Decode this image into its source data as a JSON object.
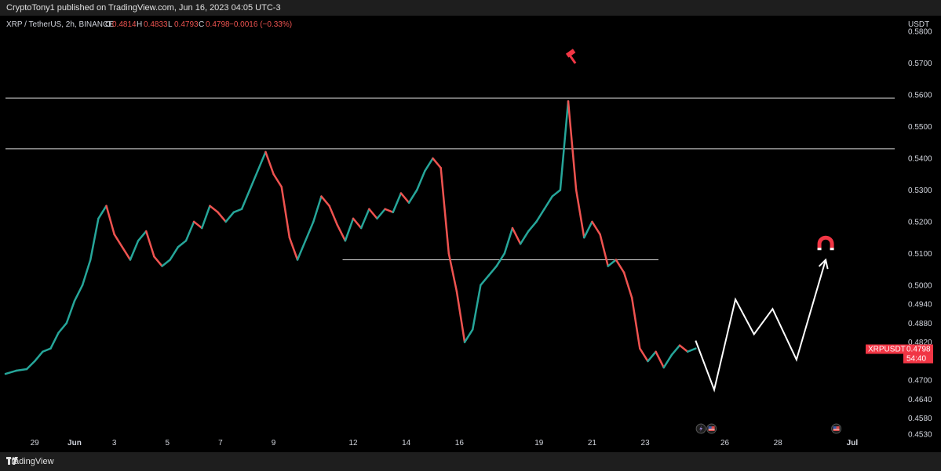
{
  "published": "CryptoTony1 published on TradingView.com, Jun 16, 2023 04:05 UTC-3",
  "footer_brand": "TradingView",
  "chart_data": {
    "type": "line",
    "legend": {
      "symbol": "XRP / TetherUS, 2h, BINANCE",
      "O": "0.4814",
      "H": "0.4833",
      "L": "0.4793",
      "C": "0.4798",
      "change": "−0.0016 (−0.33%)",
      "o_label": "O",
      "h_label": "H",
      "l_label": "L",
      "c_label": "C"
    },
    "currency": "USDT",
    "ylim": [
      0.4515,
      0.585
    ],
    "y_ticks": [
      {
        "label": "0.5800",
        "value": 0.58
      },
      {
        "label": "0.5700",
        "value": 0.57
      },
      {
        "label": "0.5600",
        "value": 0.56
      },
      {
        "label": "0.5500",
        "value": 0.55
      },
      {
        "label": "0.5400",
        "value": 0.54
      },
      {
        "label": "0.5300",
        "value": 0.53
      },
      {
        "label": "0.5200",
        "value": 0.52
      },
      {
        "label": "0.5100",
        "value": 0.51
      },
      {
        "label": "0.5000",
        "value": 0.5
      },
      {
        "label": "0.4940",
        "value": 0.494
      },
      {
        "label": "0.4880",
        "value": 0.488
      },
      {
        "label": "0.4820",
        "value": 0.482
      },
      {
        "label": "0.4700",
        "value": 0.47
      },
      {
        "label": "0.4640",
        "value": 0.464
      },
      {
        "label": "0.4580",
        "value": 0.458
      },
      {
        "label": "0.4530",
        "value": 0.453
      }
    ],
    "x_ticks": [
      {
        "label": "29",
        "day": 0
      },
      {
        "label": "Jun",
        "day": 1.5
      },
      {
        "label": "3",
        "day": 3
      },
      {
        "label": "5",
        "day": 5
      },
      {
        "label": "7",
        "day": 7
      },
      {
        "label": "9",
        "day": 9
      },
      {
        "label": "12",
        "day": 12
      },
      {
        "label": "14",
        "day": 14
      },
      {
        "label": "16",
        "day": 16
      },
      {
        "label": "19",
        "day": 19
      },
      {
        "label": "21",
        "day": 21
      },
      {
        "label": "23",
        "day": 23
      },
      {
        "label": "26",
        "day": 26
      },
      {
        "label": "28",
        "day": 28
      },
      {
        "label": "Jul",
        "day": 30.8
      }
    ],
    "xlim": [
      -1.1,
      32.4
    ],
    "price_badge": {
      "symbol": "XRPUSDT",
      "price": "0.4798",
      "timer": "54:40",
      "value": 0.4798
    },
    "horizontal_levels": [
      {
        "value": 0.559,
        "from_day": -1.1,
        "to_day": 32.4
      },
      {
        "value": 0.543,
        "from_day": -1.1,
        "to_day": 32.4
      },
      {
        "value": 0.508,
        "from_day": 11.6,
        "to_day": 23.5
      }
    ],
    "price_path": [
      [
        -1.1,
        0.472
      ],
      [
        -0.7,
        0.473
      ],
      [
        -0.3,
        0.4735
      ],
      [
        0.0,
        0.476
      ],
      [
        0.3,
        0.479
      ],
      [
        0.6,
        0.48
      ],
      [
        0.9,
        0.485
      ],
      [
        1.2,
        0.488
      ],
      [
        1.5,
        0.495
      ],
      [
        1.8,
        0.5
      ],
      [
        2.1,
        0.508
      ],
      [
        2.4,
        0.521
      ],
      [
        2.7,
        0.525
      ],
      [
        3.0,
        0.516
      ],
      [
        3.3,
        0.512
      ],
      [
        3.6,
        0.508
      ],
      [
        3.9,
        0.514
      ],
      [
        4.2,
        0.517
      ],
      [
        4.5,
        0.509
      ],
      [
        4.8,
        0.506
      ],
      [
        5.1,
        0.508
      ],
      [
        5.4,
        0.512
      ],
      [
        5.7,
        0.514
      ],
      [
        6.0,
        0.52
      ],
      [
        6.3,
        0.518
      ],
      [
        6.6,
        0.525
      ],
      [
        6.9,
        0.523
      ],
      [
        7.2,
        0.52
      ],
      [
        7.5,
        0.523
      ],
      [
        7.8,
        0.524
      ],
      [
        8.1,
        0.53
      ],
      [
        8.4,
        0.536
      ],
      [
        8.7,
        0.542
      ],
      [
        9.0,
        0.535
      ],
      [
        9.3,
        0.531
      ],
      [
        9.6,
        0.515
      ],
      [
        9.9,
        0.508
      ],
      [
        10.2,
        0.514
      ],
      [
        10.5,
        0.52
      ],
      [
        10.8,
        0.528
      ],
      [
        11.1,
        0.525
      ],
      [
        11.4,
        0.519
      ],
      [
        11.7,
        0.514
      ],
      [
        12.0,
        0.521
      ],
      [
        12.3,
        0.518
      ],
      [
        12.6,
        0.524
      ],
      [
        12.9,
        0.521
      ],
      [
        13.2,
        0.524
      ],
      [
        13.5,
        0.523
      ],
      [
        13.8,
        0.529
      ],
      [
        14.1,
        0.526
      ],
      [
        14.4,
        0.53
      ],
      [
        14.7,
        0.536
      ],
      [
        15.0,
        0.54
      ],
      [
        15.3,
        0.537
      ],
      [
        15.6,
        0.51
      ],
      [
        15.9,
        0.498
      ],
      [
        16.2,
        0.482
      ],
      [
        16.5,
        0.486
      ],
      [
        16.8,
        0.5
      ],
      [
        17.1,
        0.503
      ],
      [
        17.4,
        0.506
      ],
      [
        17.7,
        0.51
      ],
      [
        18.0,
        0.518
      ],
      [
        18.3,
        0.513
      ],
      [
        18.6,
        0.517
      ],
      [
        18.9,
        0.52
      ],
      [
        19.2,
        0.524
      ],
      [
        19.5,
        0.528
      ],
      [
        19.8,
        0.53
      ],
      [
        20.1,
        0.558
      ],
      [
        20.4,
        0.53
      ],
      [
        20.7,
        0.515
      ],
      [
        21.0,
        0.52
      ],
      [
        21.3,
        0.516
      ],
      [
        21.6,
        0.506
      ],
      [
        21.9,
        0.508
      ],
      [
        22.2,
        0.504
      ],
      [
        22.5,
        0.496
      ],
      [
        22.8,
        0.48
      ],
      [
        23.1,
        0.476
      ],
      [
        23.4,
        0.479
      ],
      [
        23.7,
        0.474
      ],
      [
        24.0,
        0.478
      ],
      [
        24.3,
        0.481
      ],
      [
        24.6,
        0.479
      ],
      [
        24.9,
        0.48
      ]
    ],
    "projection_path": [
      [
        24.9,
        0.4825
      ],
      [
        25.6,
        0.467
      ],
      [
        26.4,
        0.4955
      ],
      [
        27.1,
        0.4845
      ],
      [
        27.8,
        0.4925
      ],
      [
        28.7,
        0.4765
      ],
      [
        29.8,
        0.508
      ]
    ],
    "markers": [
      {
        "icon": "hammer-icon",
        "day": 20.2,
        "value": 0.572,
        "color": "#f23645"
      },
      {
        "icon": "magnet-icon",
        "day": 29.8,
        "value": 0.513,
        "color": "#f23645"
      }
    ],
    "event_icons": [
      {
        "icon": "lightning-icon",
        "day": 25.1
      },
      {
        "icon": "us-flag-icon",
        "day": 25.5
      },
      {
        "icon": "us-flag-icon",
        "day": 30.2
      }
    ],
    "colors": {
      "up": "#26a69a",
      "down": "#ef5350",
      "badge": "#f23645",
      "line": "#d9d9d9",
      "projection": "#ffffff"
    }
  }
}
